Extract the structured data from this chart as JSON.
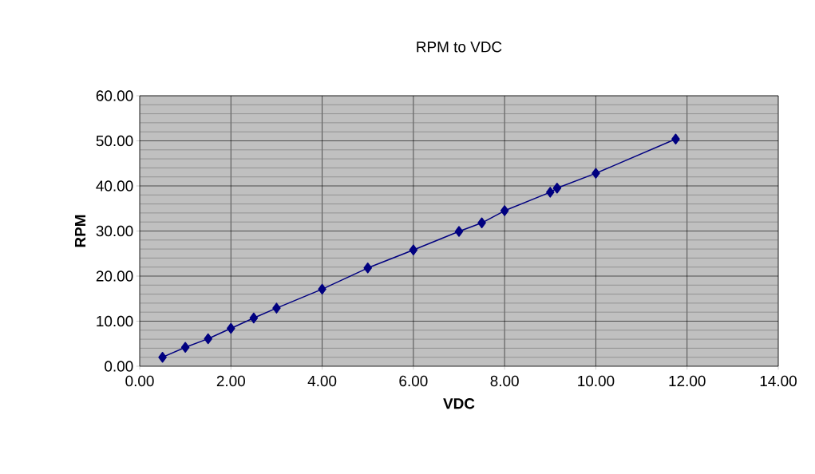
{
  "chart_data": {
    "type": "line",
    "title": "RPM to VDC",
    "xlabel": "VDC",
    "ylabel": "RPM",
    "x": [
      0.5,
      1,
      1.5,
      2,
      2.5,
      3,
      4,
      5,
      6,
      7,
      7.5,
      8,
      9,
      9.15,
      10,
      11.75
    ],
    "series": [
      {
        "color": "#000080",
        "values": [
          2.0,
          4.2,
          6.1,
          8.4,
          10.7,
          12.9,
          17.1,
          21.8,
          25.8,
          29.9,
          31.8,
          34.5,
          38.6,
          39.5,
          42.8,
          50.4
        ]
      }
    ],
    "xlim": [
      0,
      14
    ],
    "ylim": [
      0,
      60
    ],
    "xticks": [
      {
        "value": 0,
        "label": "0.00"
      },
      {
        "value": 2,
        "label": "2.00"
      },
      {
        "value": 4,
        "label": "4.00"
      },
      {
        "value": 6,
        "label": "6.00"
      },
      {
        "value": 8,
        "label": "8.00"
      },
      {
        "value": 10,
        "label": "10.00"
      },
      {
        "value": 12,
        "label": "12.00"
      },
      {
        "value": 14,
        "label": "14.00"
      }
    ],
    "yticks": [
      {
        "value": 0,
        "label": "0.00"
      },
      {
        "value": 10,
        "label": "10.00"
      },
      {
        "value": 20,
        "label": "20.00"
      },
      {
        "value": 30,
        "label": "30.00"
      },
      {
        "value": 40,
        "label": "40.00"
      },
      {
        "value": 50,
        "label": "50.00"
      },
      {
        "value": 60,
        "label": "60.00"
      }
    ],
    "grid": true,
    "marker": "diamond",
    "line_style": "solid"
  }
}
